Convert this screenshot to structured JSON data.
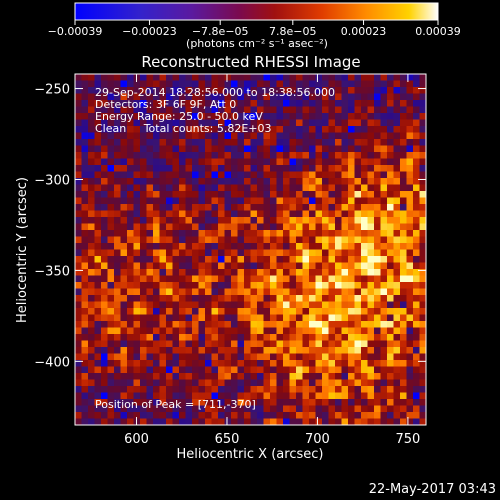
{
  "chart_data": {
    "type": "heatmap",
    "title": "Reconstructed RHESSI Image",
    "xlabel": "Heliocentric X (arcsec)",
    "ylabel": "Heliocentric Y (arcsec)",
    "xlim": [
      566,
      760
    ],
    "ylim": [
      -435,
      -242
    ],
    "x_ticks": [
      600,
      650,
      700,
      750
    ],
    "x_tick_labels": [
      "600",
      "650",
      "700",
      "750"
    ],
    "y_ticks": [
      -400,
      -350,
      -300,
      -250
    ],
    "y_tick_labels": [
      "−400",
      "−350",
      "−300",
      "−250"
    ],
    "colorbar": {
      "min": -0.00039,
      "max": 0.00039,
      "ticks": [
        -0.00039,
        -0.00023,
        -7.8e-05,
        7.8e-05,
        0.00023,
        0.00039
      ],
      "tick_labels": [
        "−0.00039",
        "−0.00023",
        "−7.8e−05",
        "7.8e−05",
        "0.00023",
        "0.00039"
      ],
      "unit_label": "(photons cm⁻² s⁻¹ asec⁻²)"
    },
    "colormap": [
      "#0000ff",
      "#2a0a8c",
      "#3a1470",
      "#5a0a3c",
      "#8a0a0a",
      "#c82800",
      "#ff7a00",
      "#ffc400",
      "#ffffc8"
    ],
    "grid": false,
    "annotations": [
      "29-Sep-2014 18:28:56.000 to 18:38:56.000",
      "Detectors: 3F 6F 9F, Att 0",
      "Energy Range: 25.0 - 50.0 keV",
      "Clean     Total counts: 5.82E+03"
    ],
    "peak": {
      "label": "Position of Peak = [711,-370]",
      "x": 711,
      "y": -370
    }
  },
  "footer": {
    "timestamp": "22-May-2017 03:43"
  }
}
